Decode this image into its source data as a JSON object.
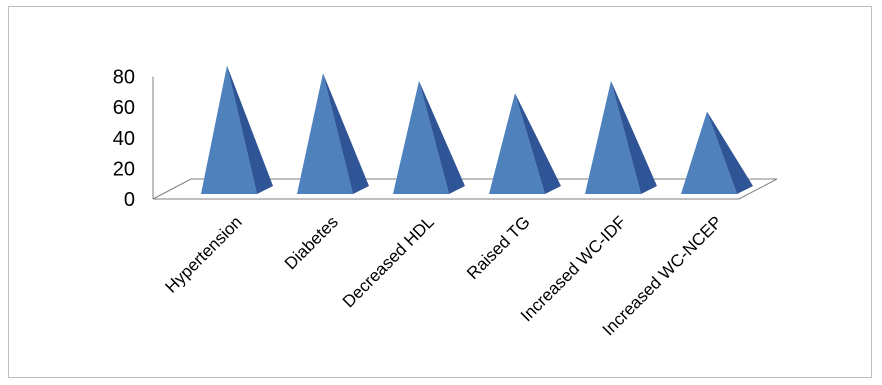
{
  "chart_data": {
    "type": "bar",
    "style": "3d-pyramid",
    "categories": [
      "Hypertension",
      "Diabetes",
      "Decreased HDL",
      "Raised TG",
      "Increased WC-IDF",
      "Increased WC-NCEP"
    ],
    "values": [
      80,
      75,
      70,
      62,
      70,
      50
    ],
    "title": "",
    "xlabel": "",
    "ylabel": "",
    "ylim": [
      0,
      80
    ],
    "yticks": [
      0,
      20,
      40,
      60,
      80
    ],
    "grid": false,
    "legend": "none",
    "colors": {
      "pyramid_front": "#4f81bd",
      "pyramid_side": "#2f5597",
      "floor_line": "#808080",
      "axis_line": "#808080",
      "border": "#bfbfbf"
    }
  }
}
